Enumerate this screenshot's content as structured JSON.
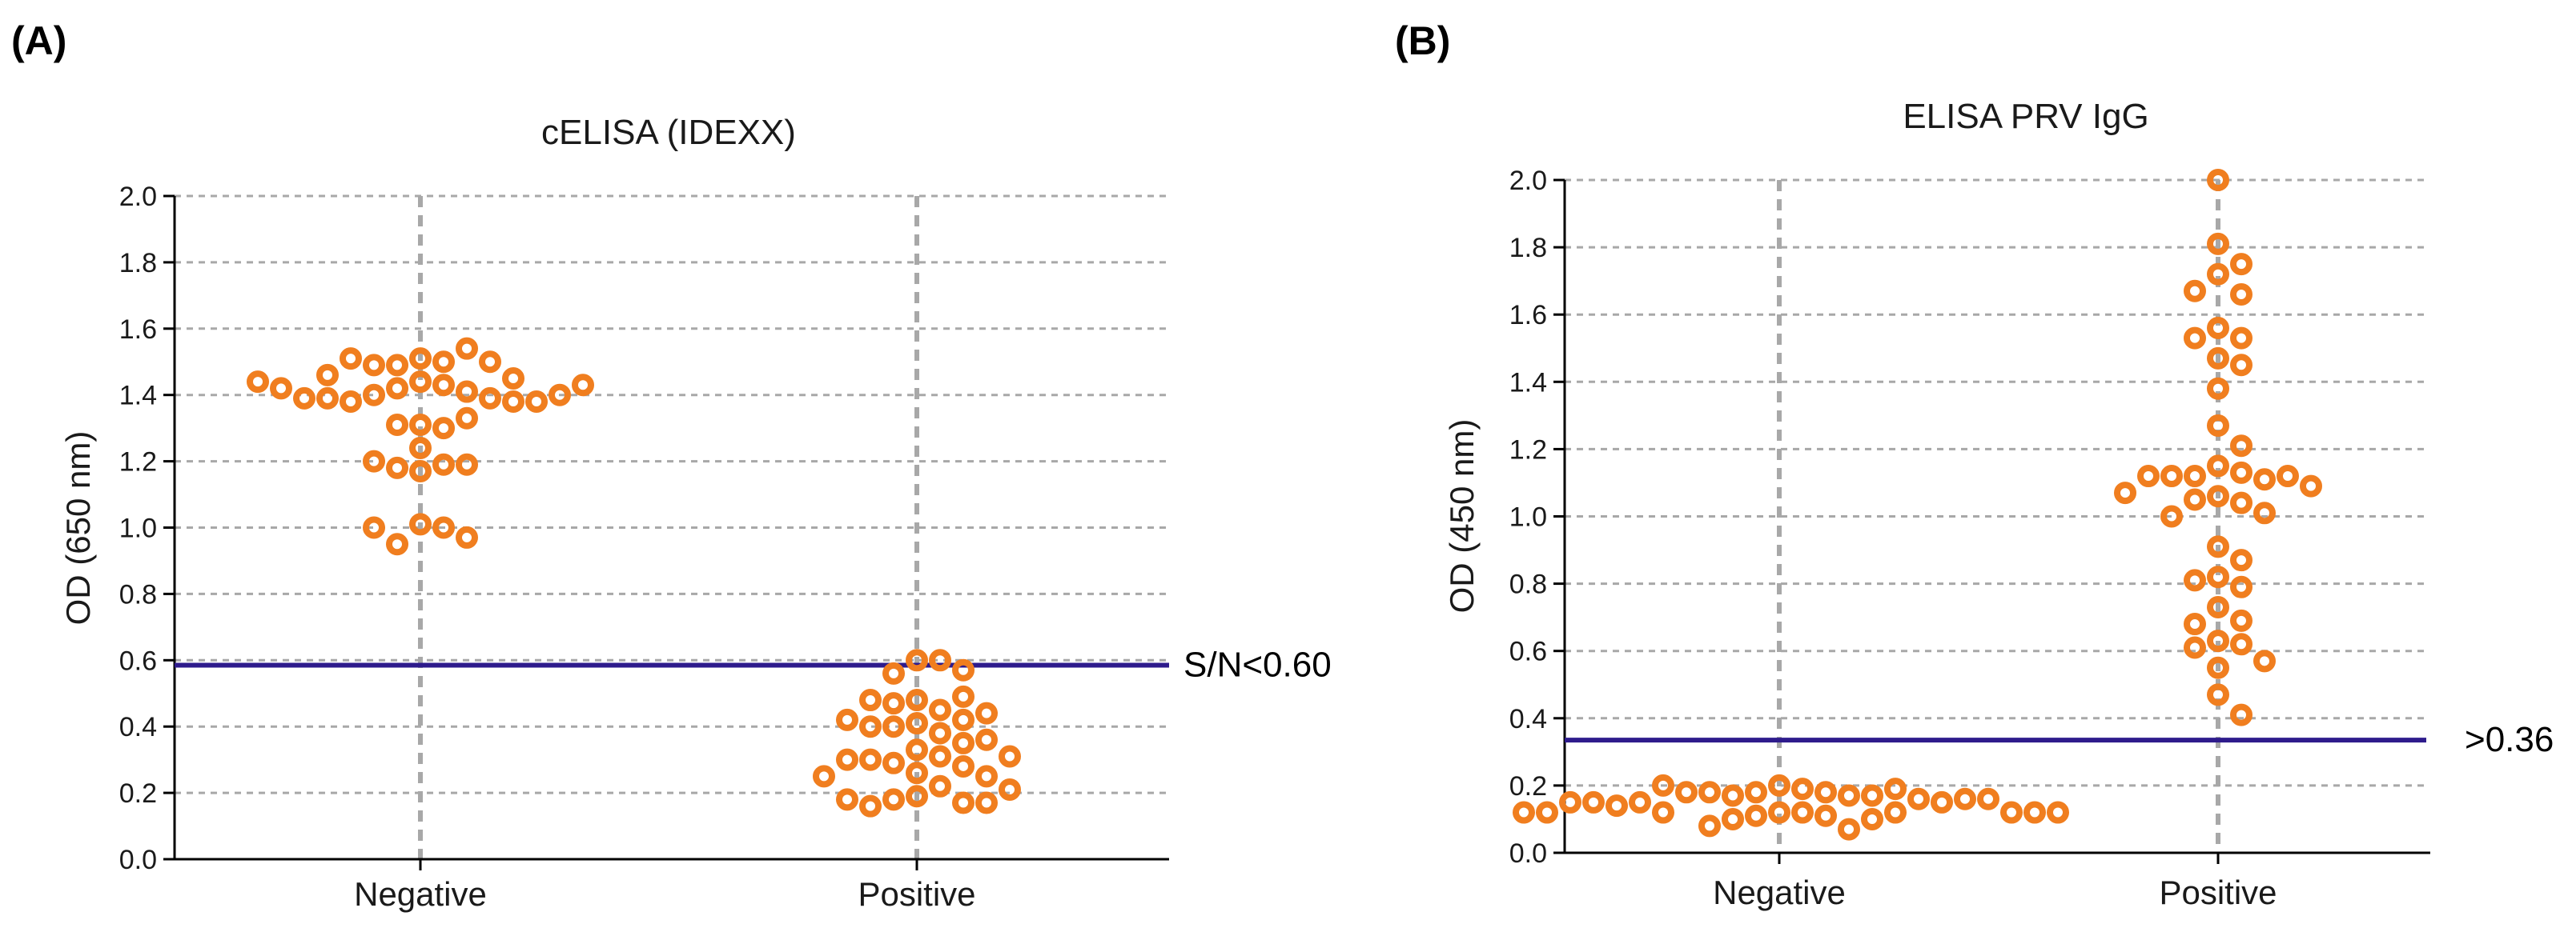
{
  "panels": [
    {
      "label": "(A)"
    },
    {
      "label": "(B)"
    }
  ],
  "chart_data": [
    {
      "type": "scatter",
      "title": "cELISA (IDEXX)",
      "ylabel": "OD (650 nm)",
      "xlabel": "",
      "categories": [
        "Negative",
        "Positive"
      ],
      "ylim": [
        0,
        2.0
      ],
      "yticks": [
        "0.0",
        "0.2",
        "0.4",
        "0.6",
        "0.8",
        "1.0",
        "1.2",
        "1.4",
        "1.6",
        "1.8",
        "2.0"
      ],
      "threshold": {
        "value": 0.585,
        "label": "S/N<0.60"
      },
      "series": [
        {
          "name": "Negative",
          "values": [
            1.44,
            1.43,
            1.42,
            1.41,
            1.4,
            1.39,
            1.38,
            1.38,
            1.39,
            1.38,
            1.39,
            1.4,
            1.42,
            1.43,
            1.44,
            1.51,
            1.5,
            1.49,
            1.54,
            1.49,
            1.5,
            1.51,
            1.45,
            1.46,
            1.31,
            1.3,
            1.31,
            1.33,
            1.24,
            1.19,
            1.18,
            1.17,
            1.19,
            1.2,
            1.01,
            1.0,
            0.95,
            0.97,
            1.0
          ]
        },
        {
          "name": "Positive",
          "values": [
            0.6,
            0.6,
            0.56,
            0.57,
            0.48,
            0.45,
            0.47,
            0.49,
            0.48,
            0.44,
            0.42,
            0.41,
            0.42,
            0.4,
            0.38,
            0.4,
            0.35,
            0.36,
            0.33,
            0.31,
            0.29,
            0.28,
            0.3,
            0.3,
            0.31,
            0.26,
            0.25,
            0.25,
            0.22,
            0.19,
            0.18,
            0.17,
            0.16,
            0.17,
            0.18,
            0.21
          ]
        }
      ]
    },
    {
      "type": "scatter",
      "title": "ELISA PRV IgG",
      "ylabel": "OD (450 nm)",
      "xlabel": "",
      "categories": [
        "Negative",
        "Positive"
      ],
      "ylim": [
        0,
        2.0
      ],
      "yticks": [
        "0.0",
        "0.2",
        "0.4",
        "0.6",
        "0.8",
        "1.0",
        "1.2",
        "1.4",
        "1.6",
        "1.8",
        "2.0"
      ],
      "threshold": {
        "value": 0.335,
        "label": ">0.36"
      },
      "series": [
        {
          "name": "Negative",
          "values": [
            0.2,
            0.19,
            0.18,
            0.18,
            0.17,
            0.17,
            0.18,
            0.17,
            0.18,
            0.19,
            0.2,
            0.16,
            0.15,
            0.15,
            0.14,
            0.16,
            0.15,
            0.16,
            0.15,
            0.12,
            0.12,
            0.12,
            0.11,
            0.12,
            0.11,
            0.12,
            0.12,
            0.12,
            0.1,
            0.07,
            0.08,
            0.1,
            0.12,
            0.12
          ]
        },
        {
          "name": "Positive",
          "values": [
            2.0,
            1.81,
            1.75,
            1.72,
            1.66,
            1.67,
            1.56,
            1.53,
            1.53,
            1.47,
            1.45,
            1.38,
            1.27,
            1.21,
            1.15,
            1.13,
            1.12,
            1.11,
            1.12,
            1.12,
            1.12,
            1.09,
            1.06,
            1.07,
            1.04,
            1.05,
            1.01,
            1.0,
            0.91,
            0.87,
            0.82,
            0.81,
            0.79,
            0.73,
            0.69,
            0.68,
            0.63,
            0.62,
            0.61,
            0.57,
            0.55,
            0.47,
            0.41
          ]
        }
      ]
    }
  ]
}
